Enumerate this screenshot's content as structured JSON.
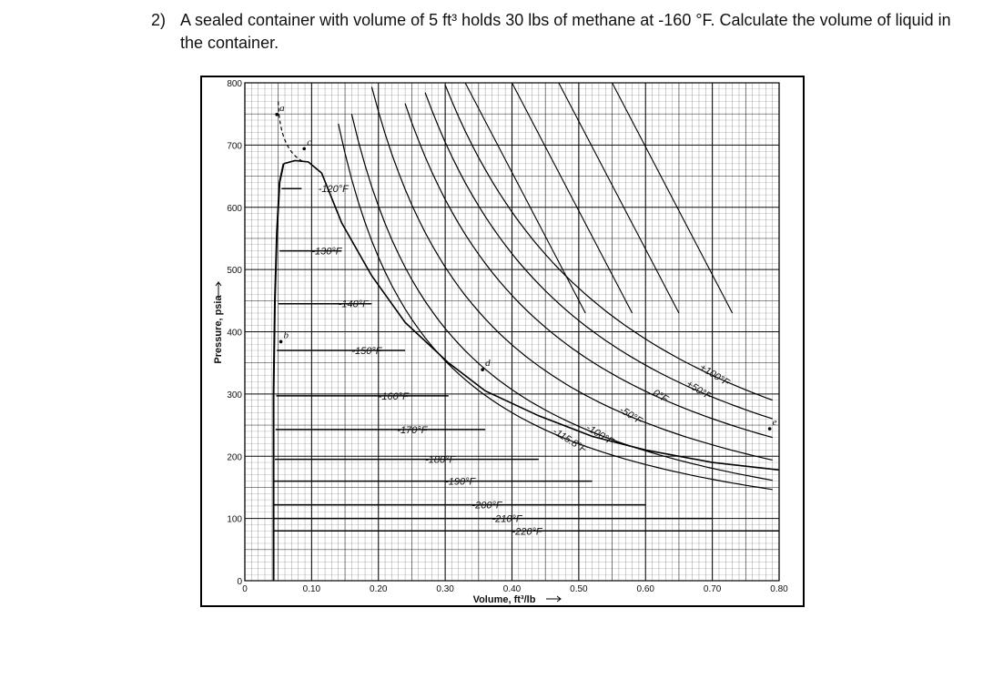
{
  "question": {
    "number": "2)",
    "text": "A sealed container with volume of 5 ft³ holds 30 lbs of methane at -160 °F. Calculate the volume of liquid in the container."
  },
  "chart_data": {
    "type": "line",
    "title": "",
    "xlabel": "Volume, ft³/lb",
    "ylabel": "Pressure, psia",
    "xlim": [
      0,
      0.8
    ],
    "ylim": [
      0,
      800
    ],
    "xticks": [
      {
        "value": 0,
        "label": "0"
      },
      {
        "value": 0.1,
        "label": "0.10"
      },
      {
        "value": 0.2,
        "label": "0.20"
      },
      {
        "value": 0.3,
        "label": "0.30"
      },
      {
        "value": 0.4,
        "label": "0.40"
      },
      {
        "value": 0.5,
        "label": "0.50"
      },
      {
        "value": 0.6,
        "label": "0.60"
      },
      {
        "value": 0.7,
        "label": "0.70"
      },
      {
        "value": 0.8,
        "label": "0.80"
      }
    ],
    "yticks": [
      {
        "value": 0,
        "label": "0"
      },
      {
        "value": 100,
        "label": "100"
      },
      {
        "value": 200,
        "label": "200"
      },
      {
        "value": 300,
        "label": "300"
      },
      {
        "value": 400,
        "label": "400"
      },
      {
        "value": 500,
        "label": "500"
      },
      {
        "value": 600,
        "label": "600"
      },
      {
        "value": 700,
        "label": "700"
      },
      {
        "value": 800,
        "label": "800"
      }
    ],
    "grid": true,
    "two_phase_isotherms": [
      {
        "label": "-120°F",
        "pressure": 630,
        "v_liquid": 0.055,
        "v_vapor": 0.085,
        "label_x": 0.11
      },
      {
        "label": "-130°F",
        "pressure": 530,
        "v_liquid": 0.052,
        "v_vapor": 0.145,
        "label_x": 0.1
      },
      {
        "label": "-140°F",
        "pressure": 445,
        "v_liquid": 0.05,
        "v_vapor": 0.19,
        "label_x": 0.14
      },
      {
        "label": "-150°F",
        "pressure": 370,
        "v_liquid": 0.048,
        "v_vapor": 0.24,
        "label_x": 0.16
      },
      {
        "label": "-160°F",
        "pressure": 297,
        "v_liquid": 0.047,
        "v_vapor": 0.305,
        "label_x": 0.2
      },
      {
        "label": "-170°F",
        "pressure": 243,
        "v_liquid": 0.046,
        "v_vapor": 0.36,
        "label_x": 0.228
      },
      {
        "label": "-180°F",
        "pressure": 195,
        "v_liquid": 0.045,
        "v_vapor": 0.44,
        "label_x": 0.27
      },
      {
        "label": "-190°F",
        "pressure": 160,
        "v_liquid": 0.044,
        "v_vapor": 0.52,
        "label_x": 0.3
      },
      {
        "label": "-200°F",
        "pressure": 122,
        "v_liquid": 0.044,
        "v_vapor": 0.6,
        "label_x": 0.34
      },
      {
        "label": "-210°F",
        "pressure": 100,
        "v_liquid": 0.043,
        "v_vapor": 0.7,
        "label_x": 0.37
      },
      {
        "label": "-220°F",
        "pressure": 80,
        "v_liquid": 0.043,
        "v_vapor": 0.8,
        "label_x": 0.4
      }
    ],
    "supercritical_isotherms": [
      {
        "label": "-115.8°F",
        "C": 100
      },
      {
        "label": "-100°F",
        "C": 118
      },
      {
        "label": "-50°F",
        "C": 150
      },
      {
        "label": "0°F",
        "C": 185
      },
      {
        "label": "+50°F",
        "C": 215
      },
      {
        "label": "+100°F",
        "C": 245
      }
    ],
    "steep_lines": [
      {
        "x_top": 0.33
      },
      {
        "x_top": 0.4
      },
      {
        "x_top": 0.47
      },
      {
        "x_top": 0.55
      }
    ],
    "point_labels": [
      {
        "label": "a",
        "x": 0.052,
        "y": 755
      },
      {
        "label": "b",
        "x": 0.058,
        "y": 390
      },
      {
        "label": "c",
        "x": 0.093,
        "y": 700
      },
      {
        "label": "d",
        "x": 0.36,
        "y": 345
      },
      {
        "label": "e",
        "x": 0.79,
        "y": 250
      }
    ]
  }
}
